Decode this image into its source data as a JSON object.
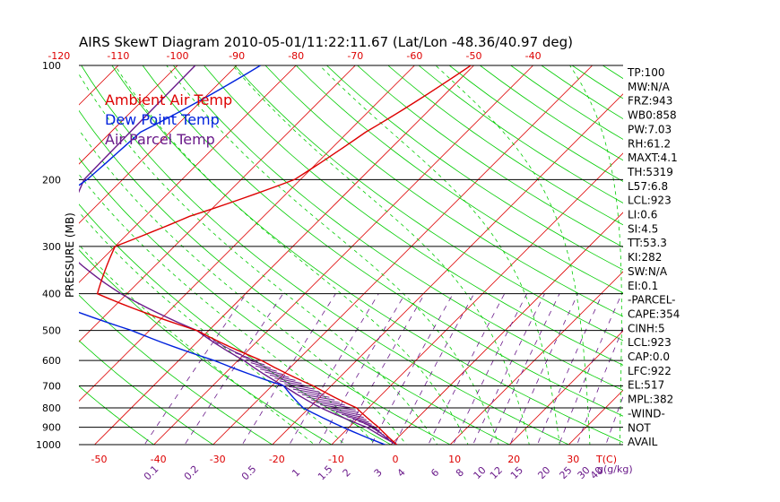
{
  "chart_data": {
    "type": "skewt",
    "title": "AIRS SkewT Diagram 2010-05-01/11:22:11.67 (Lat/Lon -48.36/40.97 deg)",
    "ylabel": "PRESSURE (MB)",
    "x_unit_label": "T(C)",
    "mixing_unit_label": "g(g/kg)",
    "pressure_ticks": [
      100,
      200,
      300,
      400,
      500,
      600,
      700,
      800,
      900,
      1000
    ],
    "pressure_tick_labels": [
      "100",
      "200",
      "300",
      "400",
      "500",
      "600",
      "700",
      "800",
      "900",
      "1000"
    ],
    "top_temp_ticks": [
      -120,
      -110,
      -100,
      -90,
      -80,
      -70,
      -60,
      -50,
      -40
    ],
    "top_temp_labels": [
      "-120",
      "-110",
      "-100",
      "-90",
      "-80",
      "-70",
      "-60",
      "-50",
      "-40"
    ],
    "bottom_temp_ticks": [
      -50,
      -40,
      -30,
      -20,
      -10,
      0,
      10,
      20,
      30
    ],
    "bottom_temp_labels": [
      "-50",
      "-40",
      "-30",
      "-20",
      "-10",
      "0",
      "10",
      "20",
      "30"
    ],
    "mixing_ratio_labels": [
      "0.1",
      "0.2",
      "0.5",
      "1",
      "1.5",
      "2",
      "3",
      "4",
      "6",
      "8",
      "10",
      "12",
      "15",
      "20",
      "25",
      "30",
      "40"
    ],
    "mixing_ratio_values": [
      0.1,
      0.2,
      0.5,
      1,
      1.5,
      2,
      3,
      4,
      6,
      8,
      10,
      12,
      15,
      20,
      25,
      30,
      40
    ],
    "legend": [
      {
        "label": "Ambient Air Temp",
        "color": "#dd0000"
      },
      {
        "label": "Dew Point Temp",
        "color": "#0022dd"
      },
      {
        "label": "Air Parcel Temp",
        "color": "#6a1a8a"
      }
    ],
    "series": [
      {
        "name": "Ambient Air Temp",
        "color": "#dd0000",
        "points": [
          [
            100,
            -50.5
          ],
          [
            150,
            -57
          ],
          [
            200,
            -61
          ],
          [
            250,
            -72.5
          ],
          [
            300,
            -80
          ],
          [
            400,
            -75
          ],
          [
            500,
            -52
          ],
          [
            600,
            -36
          ],
          [
            700,
            -23
          ],
          [
            800,
            -12
          ],
          [
            900,
            -5
          ],
          [
            1000,
            1
          ]
        ]
      },
      {
        "name": "Dew Point Temp",
        "color": "#0022dd",
        "points": [
          [
            100,
            -86
          ],
          [
            150,
            -95
          ],
          [
            200,
            -96
          ],
          [
            250,
            -99
          ],
          [
            300,
            -96
          ],
          [
            400,
            -86
          ],
          [
            500,
            -63
          ],
          [
            600,
            -44
          ],
          [
            700,
            -28
          ],
          [
            800,
            -21
          ],
          [
            900,
            -11
          ],
          [
            1000,
            -1
          ]
        ]
      },
      {
        "name": "Air Parcel Temp",
        "color": "#6a1a8a",
        "points": [
          [
            100,
            -97
          ],
          [
            200,
            -96.5
          ],
          [
            300,
            -89
          ],
          [
            400,
            -71
          ],
          [
            500,
            -52
          ],
          [
            600,
            -39
          ],
          [
            700,
            -28
          ],
          [
            800,
            -18
          ],
          [
            900,
            -7
          ],
          [
            1000,
            1
          ]
        ]
      }
    ],
    "stats": [
      "TP:100",
      "MW:N/A",
      "FRZ:943",
      "WB0:858",
      "PW:7.03",
      "RH:61.2",
      "MAXT:4.1",
      "TH:5319",
      "L57:6.8",
      "LCL:923",
      "LI:0.6",
      "SI:4.5",
      "TT:53.3",
      "KI:282",
      "SW:N/A",
      "EI:0.1",
      "-PARCEL-",
      "CAPE:354",
      "CINH:5",
      "LCL:923",
      "CAP:0.0",
      "LFC:922",
      "EL:517",
      "MPL:382",
      "-WIND-",
      "NOT",
      "AVAIL"
    ]
  },
  "colors": {
    "isotherm": "#dd0000",
    "dry_adiabat": "#00cc00",
    "moist_adiabat": "#00cc00",
    "mixing_ratio": "#6a1a8a",
    "hatch": "#6a1a8a"
  }
}
